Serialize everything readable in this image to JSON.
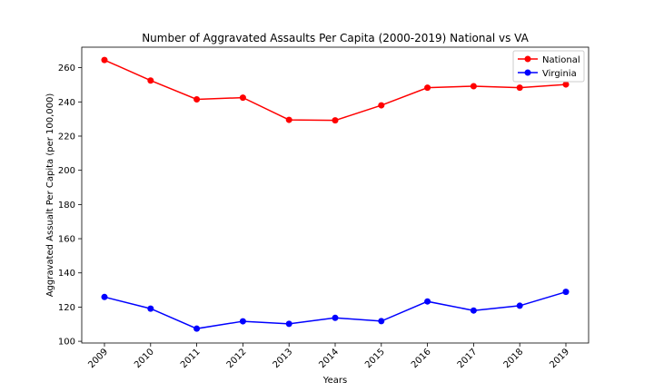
{
  "chart_data": {
    "type": "line",
    "title": "Number of Aggravated Assaults Per Capita (2000-2019) National vs VA",
    "xlabel": "Years",
    "ylabel": "Aggravated Assualt Per Capita (per 100,000)",
    "categories": [
      "2009",
      "2010",
      "2011",
      "2012",
      "2013",
      "2014",
      "2015",
      "2016",
      "2017",
      "2018",
      "2019"
    ],
    "ylim": [
      99,
      272
    ],
    "yticks": [
      100,
      120,
      140,
      160,
      180,
      200,
      220,
      240,
      260
    ],
    "grid": false,
    "legend_position": "top-right",
    "series": [
      {
        "name": "National",
        "color": "#ff0000",
        "values": [
          264.5,
          252.5,
          241.5,
          242.5,
          229.5,
          229.2,
          238.0,
          248.3,
          249.2,
          248.3,
          250.2
        ]
      },
      {
        "name": "Virginia",
        "color": "#0000ff",
        "values": [
          125.9,
          119.1,
          107.4,
          111.7,
          110.2,
          113.7,
          111.8,
          123.3,
          118.0,
          120.8,
          128.9
        ]
      }
    ]
  }
}
